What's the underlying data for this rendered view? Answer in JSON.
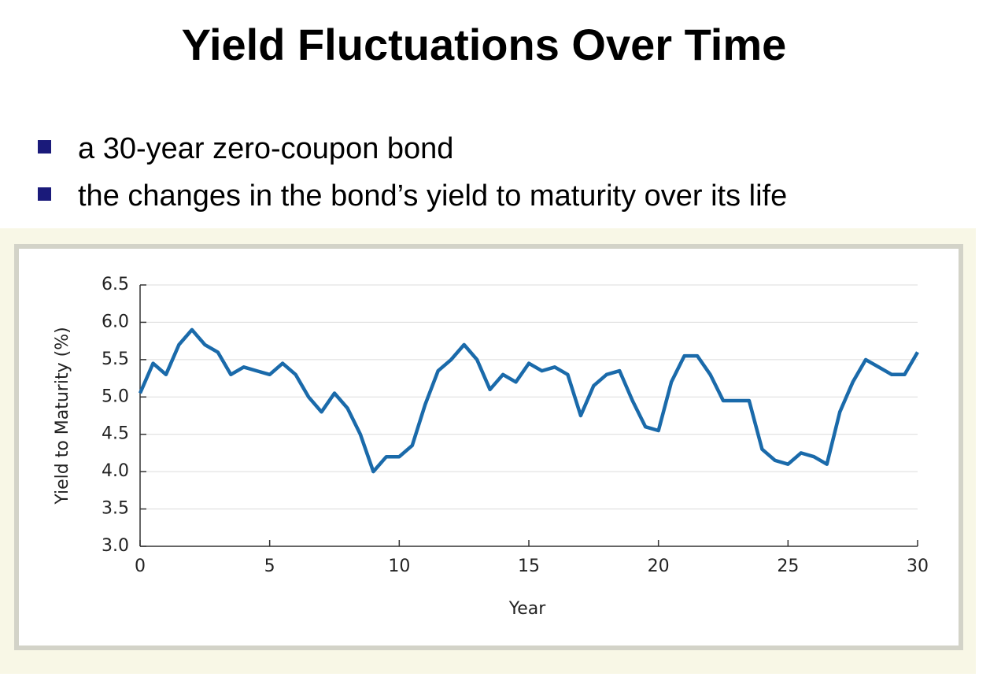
{
  "header": {
    "title": "Yield Fluctuations Over Time"
  },
  "bullets": [
    "a 30-year zero-coupon bond",
    "the changes in the bond’s yield to maturity over its life"
  ],
  "chart_data": {
    "type": "line",
    "x_label": "Year",
    "y_label": "Yield to Maturity (%)",
    "x": [
      0,
      0.5,
      1,
      1.5,
      2,
      2.5,
      3,
      3.5,
      4,
      4.5,
      5,
      5.5,
      6,
      6.5,
      7,
      7.5,
      8,
      8.5,
      9,
      9.5,
      10,
      10.5,
      11,
      11.5,
      12,
      12.5,
      13,
      13.5,
      14,
      14.5,
      15,
      15.5,
      16,
      16.5,
      17,
      17.5,
      18,
      18.5,
      19,
      19.5,
      20,
      20.5,
      21,
      21.5,
      22,
      22.5,
      23,
      23.5,
      24,
      24.5,
      25,
      25.5,
      26,
      26.5,
      27,
      27.5,
      28,
      28.5,
      29,
      29.5,
      30
    ],
    "values": [
      5.05,
      5.45,
      5.3,
      5.7,
      5.9,
      5.7,
      5.6,
      5.3,
      5.4,
      5.35,
      5.3,
      5.45,
      5.3,
      5.0,
      4.8,
      5.05,
      4.85,
      4.5,
      4.0,
      4.2,
      4.2,
      4.35,
      4.9,
      5.35,
      5.5,
      5.7,
      5.5,
      5.1,
      5.3,
      5.2,
      5.45,
      5.35,
      5.4,
      5.3,
      4.75,
      5.15,
      5.3,
      5.35,
      4.95,
      4.6,
      4.55,
      5.2,
      5.55,
      5.55,
      5.3,
      4.95,
      4.95,
      4.95,
      4.3,
      4.15,
      4.1,
      4.25,
      4.2,
      4.1,
      4.8,
      5.2,
      5.5,
      5.4,
      5.3,
      5.3,
      5.6
    ],
    "color": "#1a6aaa",
    "xlim": [
      0,
      30
    ],
    "xticks": [
      0,
      5,
      10,
      15,
      20,
      25,
      30
    ],
    "ylim": [
      3,
      6.5
    ],
    "yticks": [
      {
        "value": 3,
        "label": "3.0"
      },
      3.5,
      {
        "value": 4,
        "label": "4.0"
      },
      4.5,
      {
        "value": 5,
        "label": "5.0"
      },
      5.5,
      {
        "value": 6,
        "label": "6.0"
      },
      6.5
    ],
    "grid": true
  }
}
